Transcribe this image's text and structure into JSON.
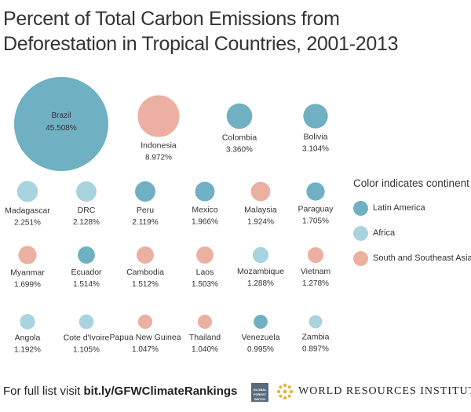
{
  "chart_data": {
    "type": "bubble",
    "title": "Percent of Total Carbon Emissions from Deforestation in Tropical Countries, 2001-2013",
    "units": "%",
    "legend": {
      "title": "Color indicates continent",
      "entries": [
        {
          "key": "latin_america",
          "label": "Latin America",
          "color": "#6FB0C3"
        },
        {
          "key": "africa",
          "label": "Africa",
          "color": "#A8D3DF"
        },
        {
          "key": "asia",
          "label": "South and Southeast Asia",
          "color": "#EBB0A2"
        }
      ]
    },
    "points": [
      {
        "country": "Brazil",
        "value": 45.508,
        "label": "45.508%",
        "continent": "latin_america"
      },
      {
        "country": "Indonesia",
        "value": 8.972,
        "label": "8.972%",
        "continent": "asia"
      },
      {
        "country": "Colombia",
        "value": 3.36,
        "label": "3.360%",
        "continent": "latin_america"
      },
      {
        "country": "Bolivia",
        "value": 3.104,
        "label": "3.104%",
        "continent": "latin_america"
      },
      {
        "country": "Madagascar",
        "value": 2.251,
        "label": "2.251%",
        "continent": "africa"
      },
      {
        "country": "DRC",
        "value": 2.128,
        "label": "2.128%",
        "continent": "africa"
      },
      {
        "country": "Peru",
        "value": 2.119,
        "label": "2.119%",
        "continent": "latin_america"
      },
      {
        "country": "Mexico",
        "value": 1.966,
        "label": "1.966%",
        "continent": "latin_america"
      },
      {
        "country": "Malaysia",
        "value": 1.924,
        "label": "1.924%",
        "continent": "asia"
      },
      {
        "country": "Paraguay",
        "value": 1.705,
        "label": "1.705%",
        "continent": "latin_america"
      },
      {
        "country": "Myanmar",
        "value": 1.699,
        "label": "1.699%",
        "continent": "asia"
      },
      {
        "country": "Ecuador",
        "value": 1.514,
        "label": "1.514%",
        "continent": "latin_america"
      },
      {
        "country": "Cambodia",
        "value": 1.512,
        "label": "1.512%",
        "continent": "asia"
      },
      {
        "country": "Laos",
        "value": 1.503,
        "label": "1.503%",
        "continent": "asia"
      },
      {
        "country": "Mozambique",
        "value": 1.288,
        "label": "1.288%",
        "continent": "africa"
      },
      {
        "country": "Vietnam",
        "value": 1.278,
        "label": "1.278%",
        "continent": "asia"
      },
      {
        "country": "Angola",
        "value": 1.192,
        "label": "1.192%",
        "continent": "africa"
      },
      {
        "country": "Cote d'Ivoire",
        "value": 1.105,
        "label": "1.105%",
        "continent": "africa"
      },
      {
        "country": "Papua New Guinea",
        "value": 1.047,
        "label": "1.047%",
        "continent": "asia"
      },
      {
        "country": "Thailand",
        "value": 1.04,
        "label": "1.040%",
        "continent": "asia"
      },
      {
        "country": "Venezuela",
        "value": 0.995,
        "label": "0.995%",
        "continent": "latin_america"
      },
      {
        "country": "Zambia",
        "value": 0.897,
        "label": "0.897%",
        "continent": "africa"
      }
    ]
  },
  "footer": {
    "prefix": "For full list visit ",
    "link": "bit.ly/GFWClimateRankings"
  },
  "logos": {
    "gfw_text": "GLOBAL FOREST WATCH",
    "wri_text": "WORLD RESOURCES INSTITUTE"
  }
}
